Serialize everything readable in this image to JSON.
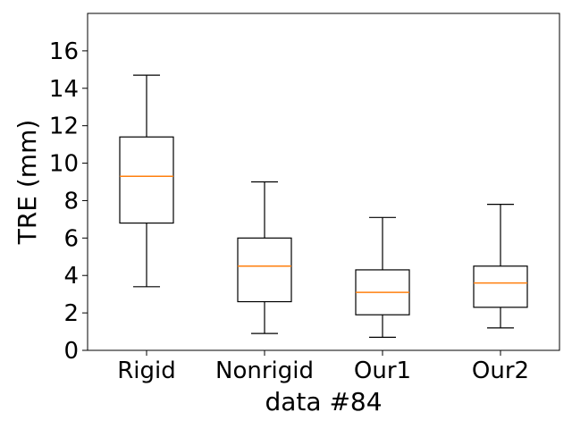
{
  "chart_data": {
    "type": "boxplot",
    "title": "",
    "xlabel": "data #84",
    "ylabel": "TRE (mm)",
    "ylim": [
      0,
      18
    ],
    "yticks": [
      0,
      2,
      4,
      6,
      8,
      10,
      12,
      14,
      16
    ],
    "grid": false,
    "categories": [
      "Rigid",
      "Nonrigid",
      "Our1",
      "Our2"
    ],
    "boxes": [
      {
        "category": "Rigid",
        "whisker_low": 3.4,
        "q1": 6.8,
        "median": 9.3,
        "q3": 11.4,
        "whisker_high": 14.7
      },
      {
        "category": "Nonrigid",
        "whisker_low": 0.9,
        "q1": 2.6,
        "median": 4.5,
        "q3": 6.0,
        "whisker_high": 9.0
      },
      {
        "category": "Our1",
        "whisker_low": 0.7,
        "q1": 1.9,
        "median": 3.1,
        "q3": 4.3,
        "whisker_high": 7.1
      },
      {
        "category": "Our2",
        "whisker_low": 1.2,
        "q1": 2.3,
        "median": 3.6,
        "q3": 4.5,
        "whisker_high": 7.8
      }
    ],
    "colors": {
      "box": "#000000",
      "median": "#ff7f0e",
      "axes": "#000000"
    }
  }
}
